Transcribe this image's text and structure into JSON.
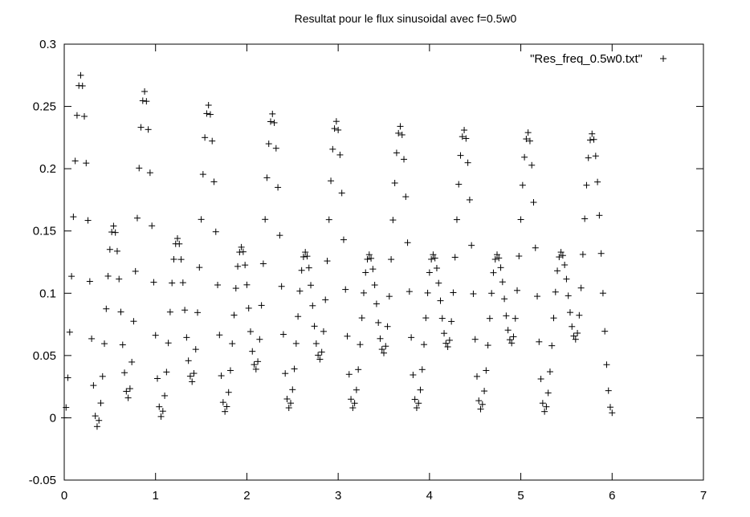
{
  "chart_data": {
    "type": "scatter",
    "title": "Resultat pour le flux sinusoidal avec f=0.5w0",
    "xlabel": "",
    "ylabel": "",
    "xlim": [
      0,
      7
    ],
    "ylim": [
      -0.05,
      0.3
    ],
    "xticks": [
      "0",
      "1",
      "2",
      "3",
      "4",
      "5",
      "6",
      "7"
    ],
    "yticks": [
      "-0.05",
      "0",
      "0.05",
      "0.1",
      "0.15",
      "0.2",
      "0.25",
      "0.3"
    ],
    "grid": false,
    "legend": {
      "position": "top-right",
      "entry": "\"Res_freq_0.5w0.txt\""
    },
    "marker": "+",
    "color": "#000000",
    "series": [
      {
        "name": "\"Res_freq_0.5w0.txt\"",
        "x_range": [
          0,
          6
        ],
        "x_step": 0.02,
        "extrema": [
          [
            0.0,
            0.0
          ],
          [
            0.18,
            0.275
          ],
          [
            0.36,
            -0.007
          ],
          [
            0.54,
            0.154
          ],
          [
            0.7,
            0.016
          ],
          [
            0.88,
            0.262
          ],
          [
            1.06,
            0.001
          ],
          [
            1.24,
            0.144
          ],
          [
            1.4,
            0.029
          ],
          [
            1.58,
            0.251
          ],
          [
            1.76,
            0.005
          ],
          [
            1.94,
            0.137
          ],
          [
            2.1,
            0.039
          ],
          [
            2.28,
            0.244
          ],
          [
            2.46,
            0.008
          ],
          [
            2.64,
            0.133
          ],
          [
            2.8,
            0.047
          ],
          [
            2.98,
            0.238
          ],
          [
            3.16,
            0.008
          ],
          [
            3.34,
            0.131
          ],
          [
            3.5,
            0.052
          ],
          [
            3.68,
            0.234
          ],
          [
            3.86,
            0.008
          ],
          [
            4.04,
            0.131
          ],
          [
            4.2,
            0.057
          ],
          [
            4.38,
            0.231
          ],
          [
            4.56,
            0.007
          ],
          [
            4.74,
            0.131
          ],
          [
            4.9,
            0.06
          ],
          [
            5.08,
            0.229
          ],
          [
            5.26,
            0.005
          ],
          [
            5.44,
            0.133
          ],
          [
            5.6,
            0.063
          ],
          [
            5.78,
            0.228
          ],
          [
            6.0,
            0.004
          ]
        ]
      }
    ]
  }
}
